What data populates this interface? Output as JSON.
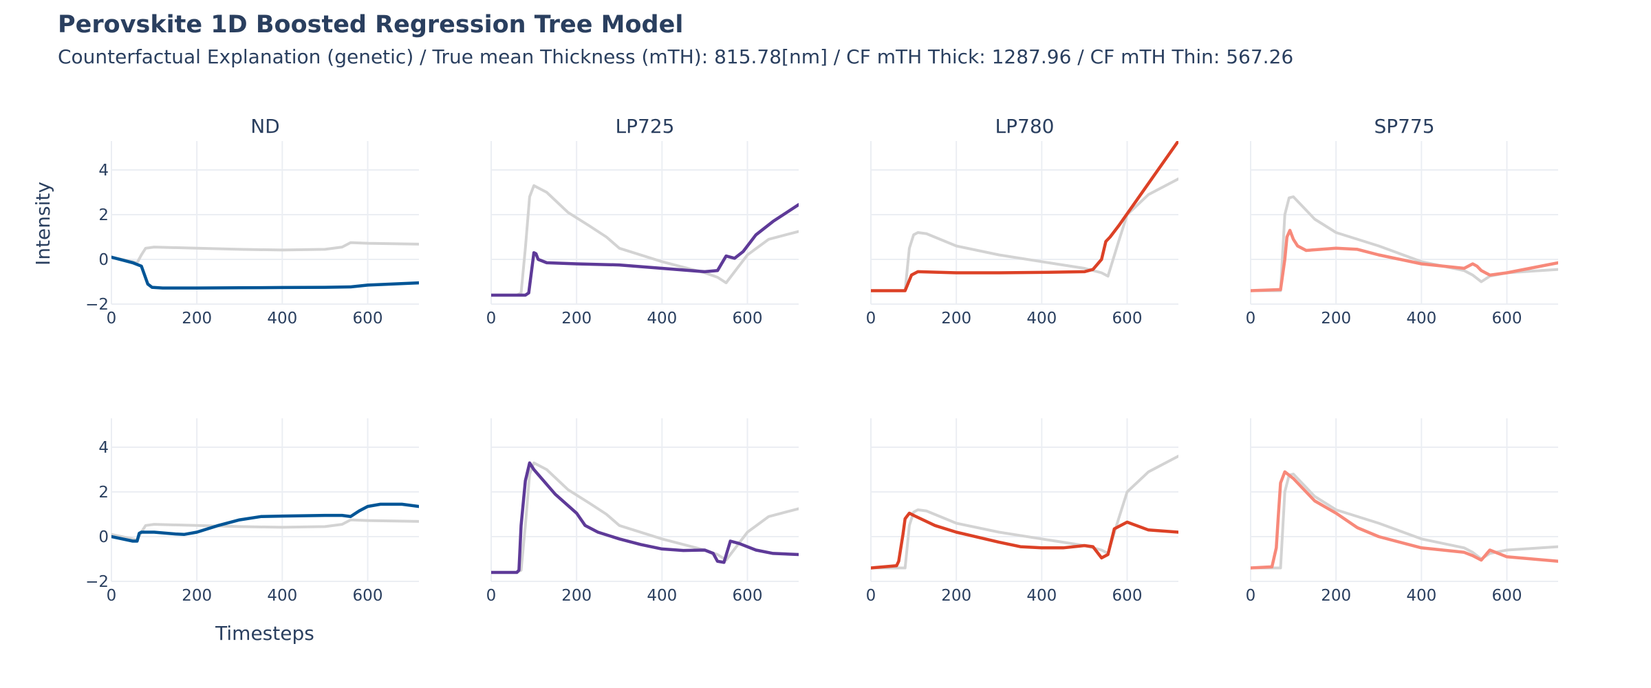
{
  "title": "Perovskite 1D Boosted Regression Tree Model",
  "subtitle": "Counterfactual Explanation (genetic) / True mean Thickness (mTH): 815.78[nm] / CF mTH Thick: 1287.96 / CF mTH Thin: 567.26",
  "chart_data": {
    "type": "line",
    "ylabel": "Intensity",
    "xlabel": "Timesteps",
    "xlim": [
      0,
      720
    ],
    "ylim": [
      -2,
      5
    ],
    "xticks": [
      0,
      200,
      400,
      600
    ],
    "yticks": [
      -2,
      0,
      2,
      4
    ],
    "original_color": "#d3d3d3",
    "columns": [
      {
        "name": "ND",
        "color": "#005596"
      },
      {
        "name": "LP725",
        "color": "#5e3a98"
      },
      {
        "name": "LP780",
        "color": "#dc4126"
      },
      {
        "name": "SP775",
        "color": "#f7897a"
      }
    ],
    "original": {
      "ND": {
        "x": [
          0,
          50,
          60,
          70,
          80,
          100,
          200,
          300,
          400,
          500,
          540,
          560,
          600,
          720
        ],
        "y": [
          0.1,
          -0.1,
          -0.15,
          0.2,
          0.5,
          0.55,
          0.5,
          0.45,
          0.42,
          0.45,
          0.55,
          0.75,
          0.72,
          0.68
        ]
      },
      "LP725": {
        "x": [
          0,
          60,
          70,
          80,
          90,
          100,
          130,
          180,
          230,
          270,
          300,
          400,
          500,
          530,
          550,
          600,
          650,
          720
        ],
        "y": [
          -1.6,
          -1.6,
          -1.5,
          0.5,
          2.8,
          3.3,
          3.0,
          2.1,
          1.5,
          1.0,
          0.5,
          -0.1,
          -0.6,
          -0.8,
          -1.05,
          0.2,
          0.9,
          1.25
        ]
      },
      "LP780": {
        "x": [
          0,
          80,
          90,
          100,
          110,
          130,
          200,
          300,
          400,
          500,
          540,
          555,
          580,
          600,
          650,
          720
        ],
        "y": [
          -1.4,
          -1.4,
          0.5,
          1.1,
          1.2,
          1.15,
          0.6,
          0.2,
          -0.1,
          -0.4,
          -0.6,
          -0.75,
          0.8,
          2.0,
          2.9,
          3.6
        ]
      },
      "SP775": {
        "x": [
          0,
          70,
          80,
          90,
          100,
          150,
          200,
          300,
          400,
          500,
          520,
          540,
          560,
          600,
          720
        ],
        "y": [
          -1.4,
          -1.4,
          2.0,
          2.75,
          2.8,
          1.8,
          1.2,
          0.6,
          -0.1,
          -0.5,
          -0.7,
          -1.0,
          -0.75,
          -0.6,
          -0.45
        ]
      }
    },
    "counterfactual_thick": {
      "ND": {
        "x": [
          0,
          50,
          70,
          85,
          95,
          120,
          200,
          300,
          400,
          500,
          560,
          600,
          720
        ],
        "y": [
          0.1,
          -0.15,
          -0.3,
          -1.1,
          -1.25,
          -1.28,
          -1.28,
          -1.27,
          -1.26,
          -1.25,
          -1.23,
          -1.15,
          -1.05
        ]
      },
      "LP725": {
        "x": [
          0,
          80,
          88,
          100,
          105,
          110,
          130,
          200,
          300,
          400,
          500,
          530,
          550,
          570,
          590,
          620,
          660,
          720
        ],
        "y": [
          -1.6,
          -1.6,
          -1.5,
          0.3,
          0.25,
          0.0,
          -0.15,
          -0.2,
          -0.25,
          -0.4,
          -0.55,
          -0.5,
          0.15,
          0.05,
          0.35,
          1.1,
          1.7,
          2.45
        ]
      },
      "LP780": {
        "x": [
          0,
          80,
          95,
          110,
          200,
          300,
          400,
          500,
          520,
          540,
          550,
          560,
          580,
          720
        ],
        "y": [
          -1.4,
          -1.4,
          -0.7,
          -0.55,
          -0.6,
          -0.6,
          -0.58,
          -0.55,
          -0.45,
          0.0,
          0.8,
          1.0,
          1.5,
          5.3
        ]
      },
      "SP775": {
        "x": [
          0,
          70,
          80,
          85,
          92,
          100,
          110,
          130,
          200,
          250,
          300,
          400,
          500,
          520,
          530,
          540,
          560,
          600,
          720
        ],
        "y": [
          -1.4,
          -1.35,
          0.0,
          1.0,
          1.3,
          0.9,
          0.6,
          0.4,
          0.5,
          0.45,
          0.2,
          -0.2,
          -0.4,
          -0.2,
          -0.3,
          -0.5,
          -0.7,
          -0.6,
          -0.15
        ]
      }
    },
    "counterfactual_thin": {
      "ND": {
        "x": [
          0,
          50,
          55,
          60,
          65,
          70,
          100,
          150,
          170,
          200,
          250,
          300,
          350,
          400,
          500,
          540,
          560,
          580,
          600,
          630,
          680,
          720
        ],
        "y": [
          0.0,
          -0.2,
          -0.2,
          -0.2,
          0.15,
          0.2,
          0.2,
          0.12,
          0.1,
          0.2,
          0.5,
          0.75,
          0.9,
          0.92,
          0.95,
          0.95,
          0.9,
          1.15,
          1.35,
          1.45,
          1.45,
          1.35
        ]
      },
      "LP725": {
        "x": [
          0,
          60,
          65,
          70,
          80,
          90,
          100,
          150,
          200,
          220,
          250,
          300,
          350,
          400,
          450,
          500,
          520,
          530,
          545,
          560,
          580,
          620,
          660,
          720
        ],
        "y": [
          -1.6,
          -1.6,
          -1.5,
          0.5,
          2.5,
          3.3,
          3.0,
          1.9,
          1.05,
          0.5,
          0.2,
          -0.1,
          -0.35,
          -0.55,
          -0.62,
          -0.6,
          -0.75,
          -1.1,
          -1.15,
          -0.2,
          -0.3,
          -0.6,
          -0.75,
          -0.8
        ]
      },
      "LP780": {
        "x": [
          0,
          60,
          65,
          75,
          80,
          90,
          100,
          150,
          200,
          300,
          350,
          400,
          450,
          500,
          520,
          540,
          555,
          570,
          600,
          650,
          720
        ],
        "y": [
          -1.4,
          -1.3,
          -1.1,
          0.1,
          0.8,
          1.05,
          0.95,
          0.5,
          0.2,
          -0.25,
          -0.45,
          -0.5,
          -0.5,
          -0.4,
          -0.45,
          -0.95,
          -0.8,
          0.35,
          0.65,
          0.3,
          0.2
        ]
      },
      "SP775": {
        "x": [
          0,
          50,
          60,
          65,
          70,
          80,
          100,
          150,
          200,
          250,
          300,
          400,
          500,
          520,
          540,
          560,
          580,
          600,
          720
        ],
        "y": [
          -1.4,
          -1.35,
          -0.5,
          1.0,
          2.4,
          2.9,
          2.6,
          1.6,
          1.05,
          0.4,
          0.0,
          -0.5,
          -0.7,
          -0.85,
          -1.05,
          -0.6,
          -0.75,
          -0.9,
          -1.1
        ]
      }
    }
  }
}
